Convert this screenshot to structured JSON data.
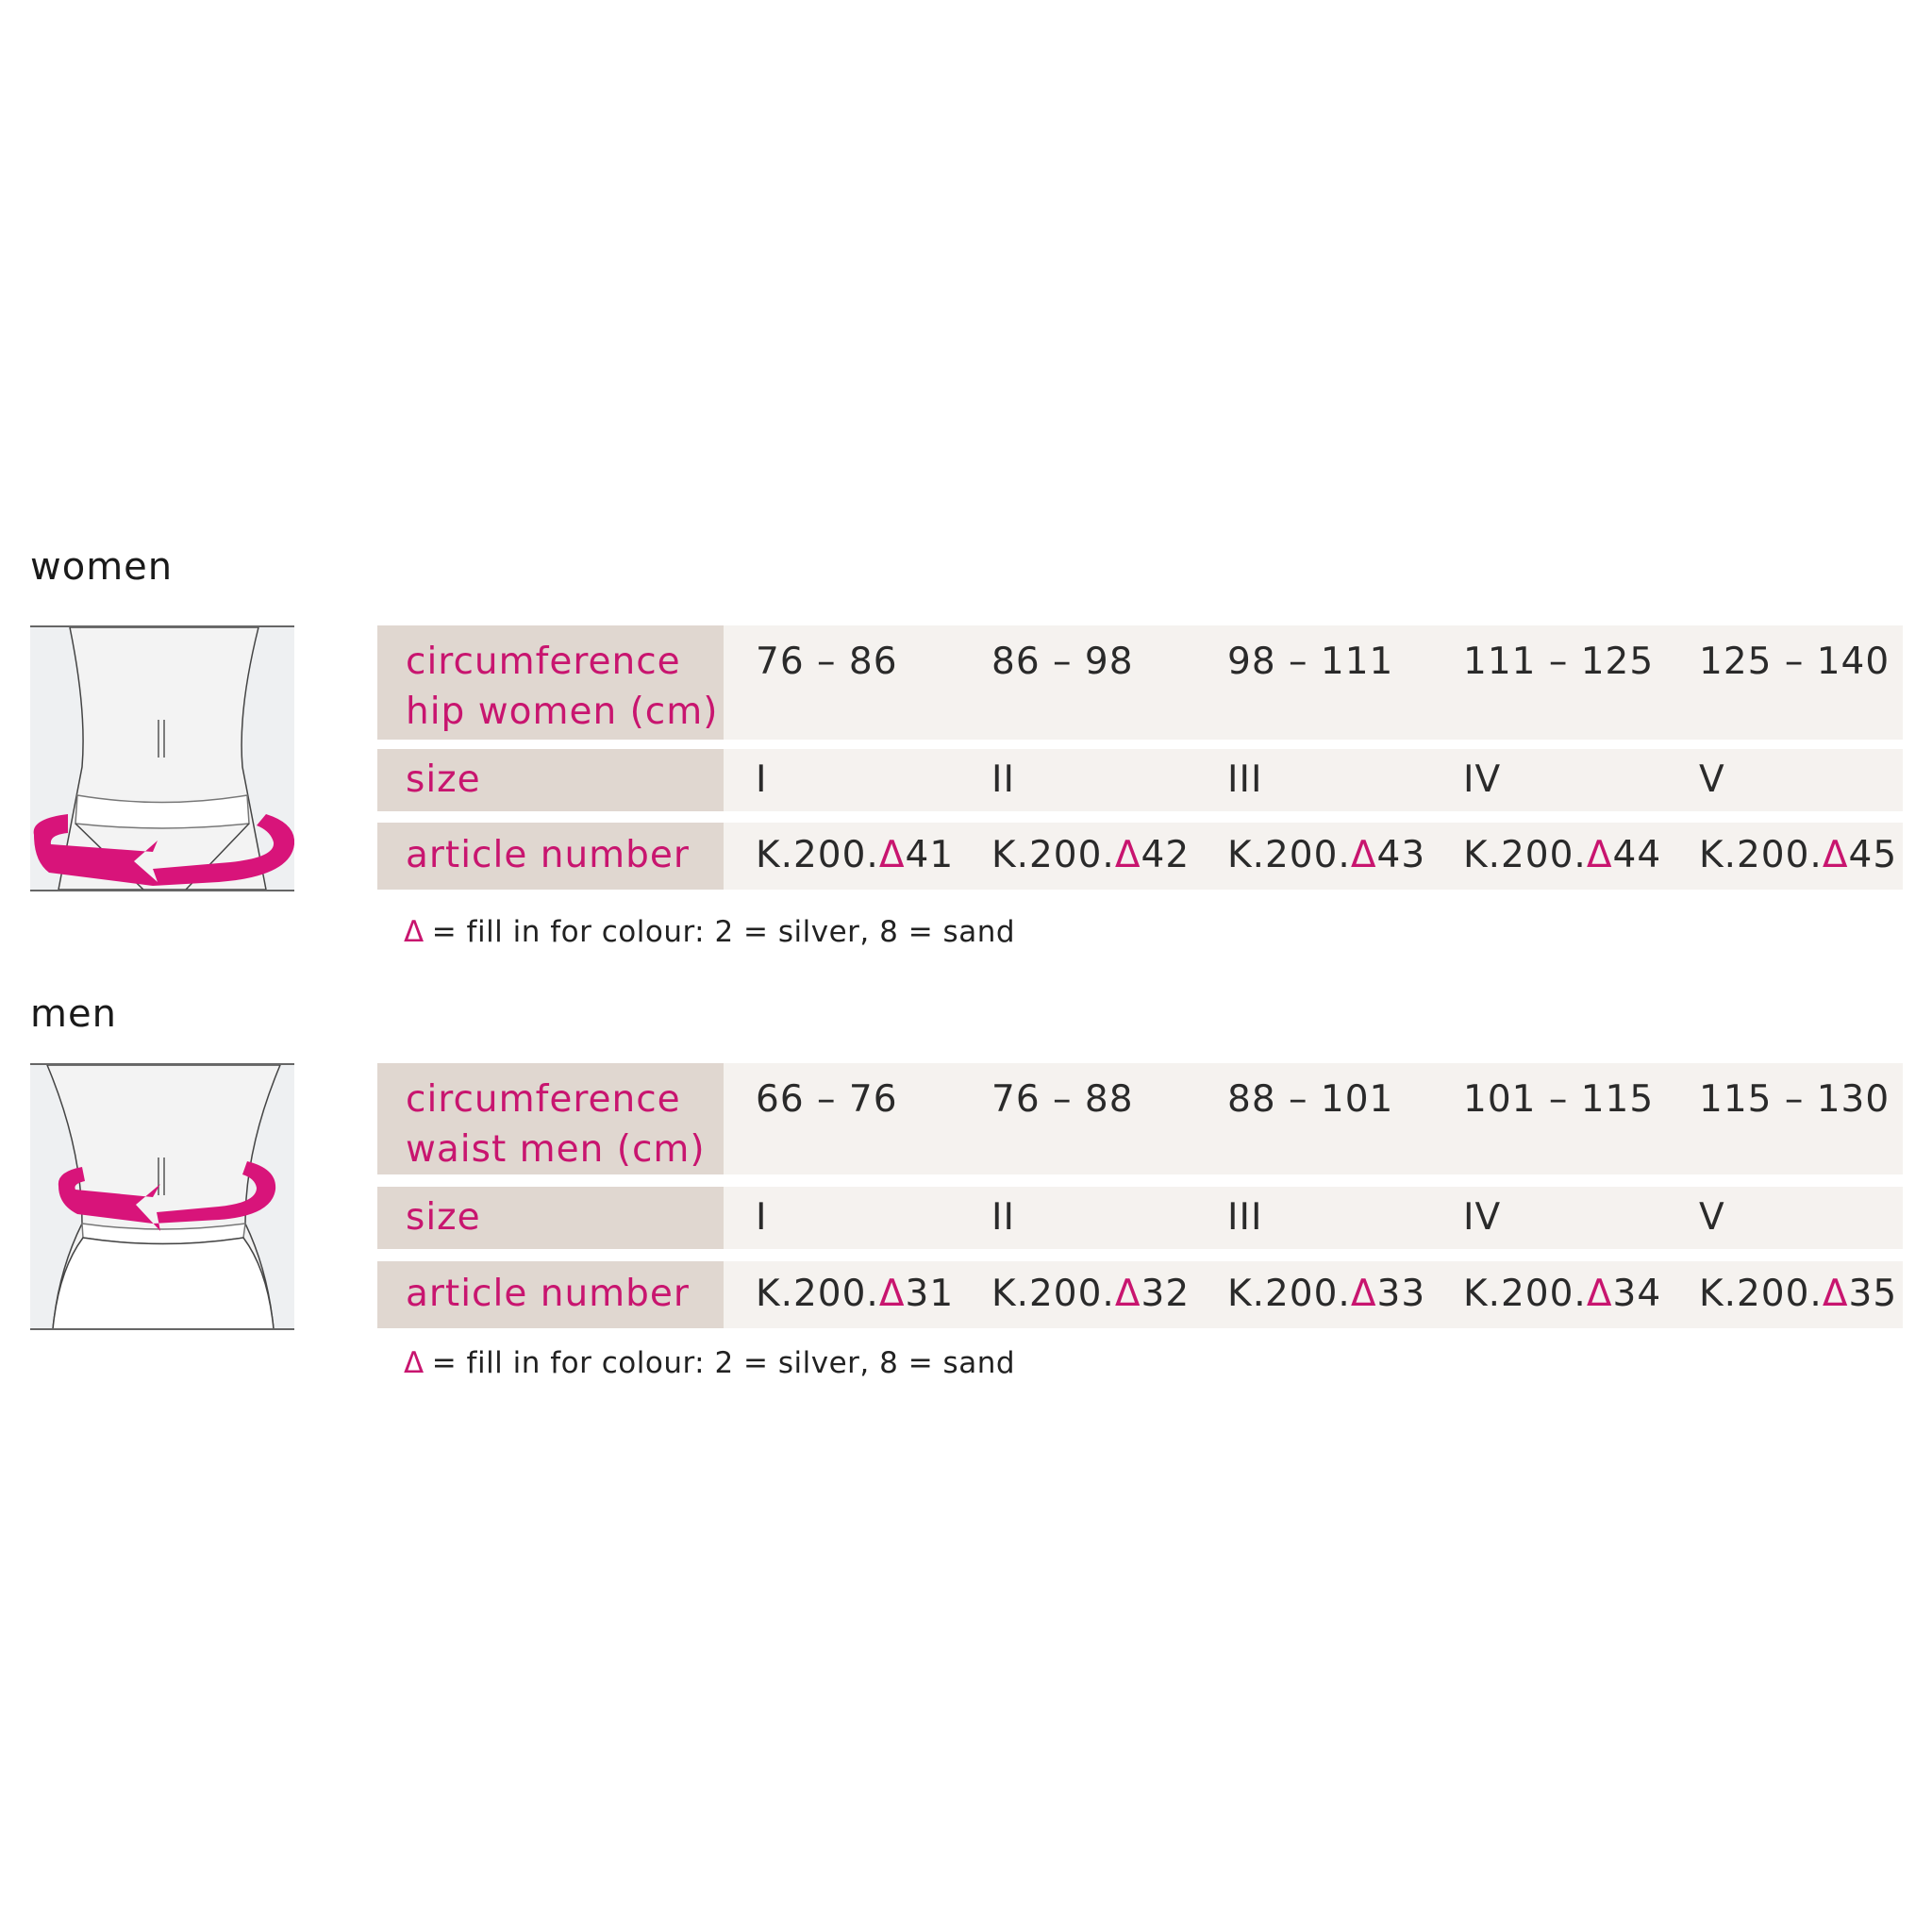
{
  "colors": {
    "accent": "#c8156f",
    "label_bg": "#e0d7d0",
    "value_bg": "#f5f2ef"
  },
  "women": {
    "title": "women",
    "illustration_icon": "hip-measurement-icon",
    "rows": [
      {
        "label_line1": "circumference",
        "label_line2": "hip women (cm)",
        "values": [
          "76 – 86",
          "86 – 98",
          "98 – 111",
          "111 – 125",
          "125 – 140"
        ]
      },
      {
        "label_line1": "size",
        "values": [
          "I",
          "II",
          "III",
          "IV",
          "V"
        ]
      },
      {
        "label_line1": "article number",
        "prefix": "K.200.",
        "symbol": "Δ",
        "suffixes": [
          "41",
          "42",
          "43",
          "44",
          "45"
        ]
      }
    ],
    "note_symbol": "Δ",
    "note": "= fill in for colour: 2 = silver, 8 = sand"
  },
  "men": {
    "title": "men",
    "illustration_icon": "waist-measurement-icon",
    "rows": [
      {
        "label_line1": "circumference",
        "label_line2": "waist men (cm)",
        "values": [
          "66 – 76",
          "76 – 88",
          "88 – 101",
          "101 – 115",
          "115 – 130"
        ]
      },
      {
        "label_line1": "size",
        "values": [
          "I",
          "II",
          "III",
          "IV",
          "V"
        ]
      },
      {
        "label_line1": "article number",
        "prefix": "K.200.",
        "symbol": "Δ",
        "suffixes": [
          "31",
          "32",
          "33",
          "34",
          "35"
        ]
      }
    ],
    "note_symbol": "Δ",
    "note": "= fill in for colour: 2 = silver, 8 = sand"
  }
}
